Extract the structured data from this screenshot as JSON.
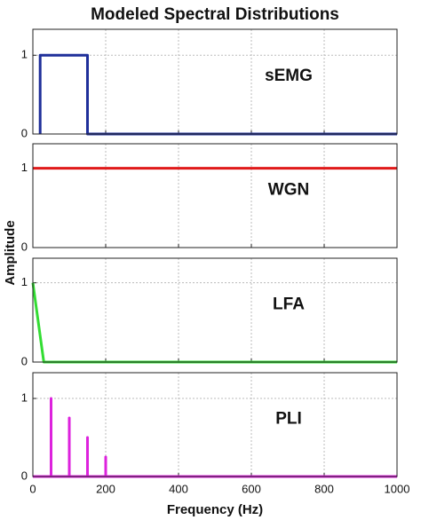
{
  "title": "Modeled Spectral Distributions",
  "xlabel": "Frequency (Hz)",
  "ylabel": "Amplitude",
  "chart_data": [
    {
      "type": "line",
      "annotation": "sEMG",
      "color": "#1f2f9a",
      "x": [
        20,
        20,
        150,
        150,
        1000
      ],
      "values": [
        0,
        1,
        1,
        0,
        0
      ],
      "xlim": [
        0,
        1000
      ],
      "xticks": [
        0,
        200,
        400,
        600,
        800,
        1000
      ],
      "ylim": [
        0,
        1.33
      ],
      "yticks": [
        0,
        1
      ],
      "grid": true
    },
    {
      "type": "line",
      "annotation": "WGN",
      "color": "#e01a1a",
      "x": [
        0,
        1000
      ],
      "values": [
        1,
        1
      ],
      "xlim": [
        0,
        1000
      ],
      "xticks": [
        0,
        200,
        400,
        600,
        800,
        1000
      ],
      "ylim": [
        0,
        1.31
      ],
      "yticks": [
        0,
        1
      ],
      "grid": true
    },
    {
      "type": "line",
      "annotation": "LFA",
      "color": "#33dd33",
      "x": [
        0,
        30,
        1000
      ],
      "values": [
        1,
        0,
        0
      ],
      "xlim": [
        0,
        1000
      ],
      "xticks": [
        0,
        200,
        400,
        600,
        800,
        1000
      ],
      "ylim": [
        0,
        1.31
      ],
      "yticks": [
        0,
        1
      ],
      "grid": true
    },
    {
      "type": "line",
      "annotation": "PLI",
      "color": "#dd22dd",
      "x": [
        0,
        50,
        50,
        50,
        100,
        100,
        100,
        150,
        150,
        150,
        200,
        200,
        200,
        1000
      ],
      "values": [
        0,
        0,
        1,
        0,
        0,
        0.75,
        0,
        0,
        0.5,
        0,
        0,
        0.25,
        0,
        0
      ],
      "xlim": [
        0,
        1000
      ],
      "xticks": [
        0,
        200,
        400,
        600,
        800,
        1000
      ],
      "ylim": [
        0,
        1.33
      ],
      "yticks": [
        0,
        1
      ],
      "grid": true,
      "show_xtick_labels": true
    }
  ]
}
